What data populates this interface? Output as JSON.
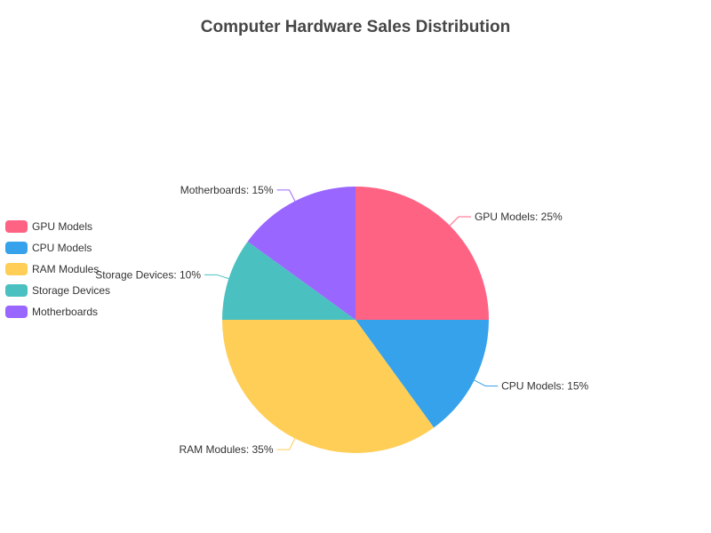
{
  "chart_data": {
    "type": "pie",
    "title": "Computer Hardware Sales Distribution",
    "categories": [
      "GPU Models",
      "CPU Models",
      "RAM Modules",
      "Storage Devices",
      "Motherboards"
    ],
    "values": [
      25,
      15,
      35,
      10,
      15
    ],
    "colors": [
      "#ff6384",
      "#36a2eb",
      "#ffce56",
      "#4bc0c0",
      "#9966ff"
    ],
    "slice_labels": [
      "GPU Models: 25%",
      "CPU Models: 15%",
      "RAM Modules: 35%",
      "Storage Devices: 10%",
      "Motherboards: 15%"
    ],
    "legend_position": "left"
  }
}
